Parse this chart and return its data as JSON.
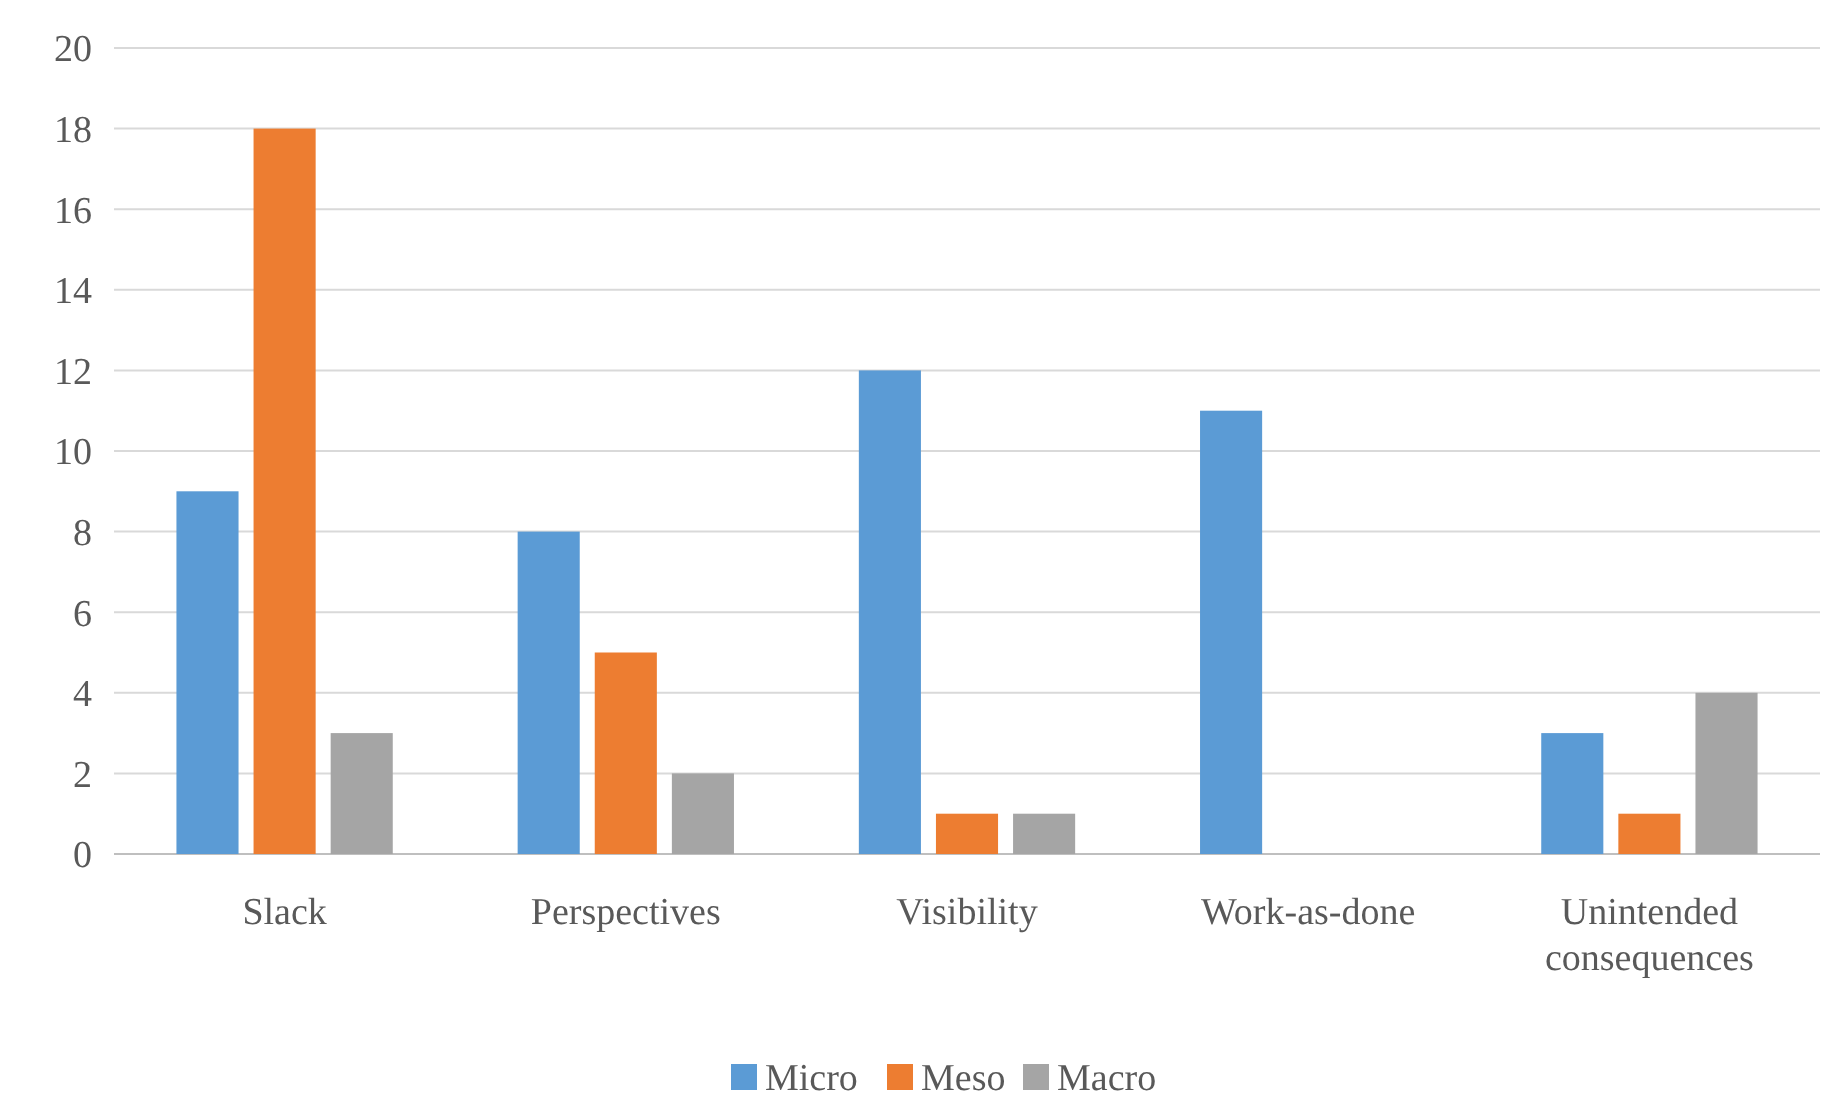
{
  "chart_data": {
    "type": "bar",
    "categories": [
      "Slack",
      "Perspectives",
      "Visibility",
      "Work-as-done",
      "Unintended consequences"
    ],
    "series": [
      {
        "name": "Micro",
        "color": "#5b9bd5",
        "values": [
          9,
          8,
          12,
          11,
          3
        ]
      },
      {
        "name": "Meso",
        "color": "#ed7d31",
        "values": [
          18,
          5,
          1,
          0,
          1
        ]
      },
      {
        "name": "Macro",
        "color": "#a5a5a5",
        "values": [
          3,
          2,
          1,
          0,
          4
        ]
      }
    ],
    "ylim": [
      0,
      20
    ],
    "yticks": [
      0,
      2,
      4,
      6,
      8,
      10,
      12,
      14,
      16,
      18,
      20
    ],
    "grid": "y",
    "legend": "bottom"
  }
}
